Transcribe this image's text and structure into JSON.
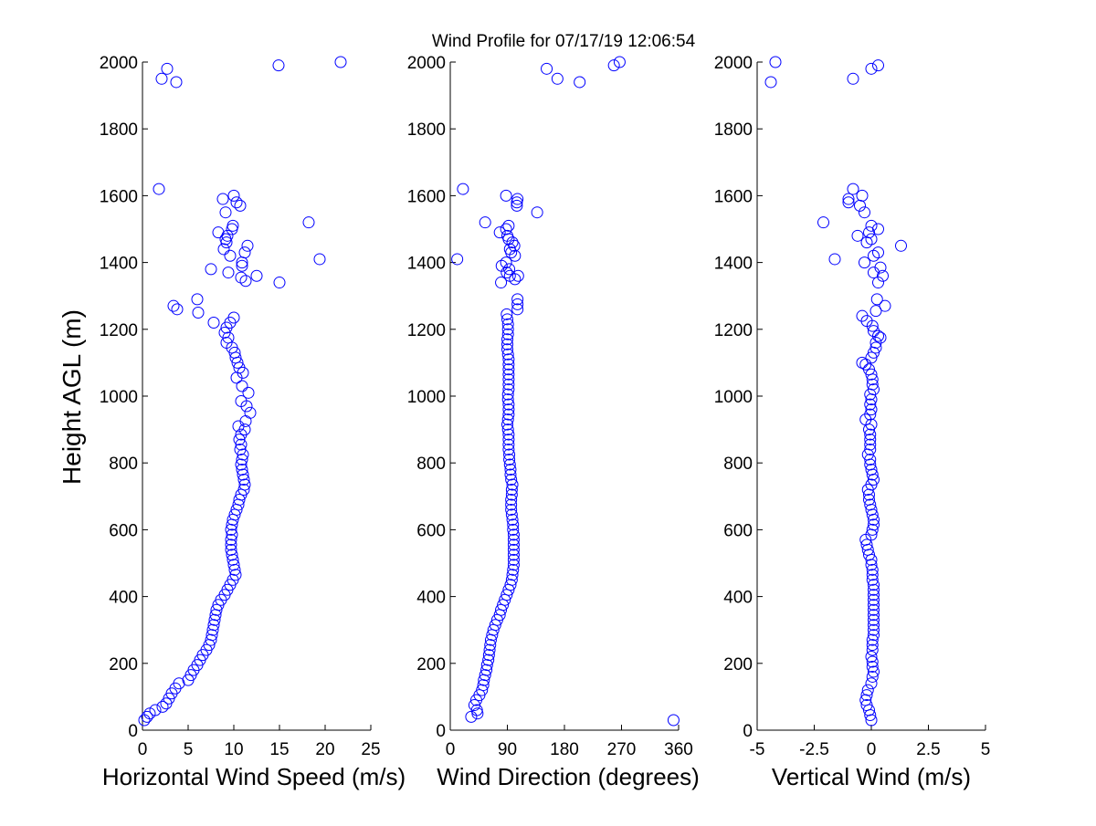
{
  "figure": {
    "title": "Wind Profile for  07/17/19 12:06:54",
    "marker_color": "#0000ff",
    "axis_color": "#000000",
    "background": "#ffffff"
  },
  "chart_data": [
    {
      "type": "scatter",
      "xlabel": "Horizontal Wind Speed (m/s)",
      "ylabel": "Height AGL (m)",
      "xlim": [
        0,
        25
      ],
      "ylim": [
        0,
        2000
      ],
      "xticks": [
        "0",
        "5",
        "10",
        "15",
        "20",
        "25"
      ],
      "yticks": [
        "0",
        "200",
        "400",
        "600",
        "800",
        "1000",
        "1200",
        "1400",
        "1600",
        "1800",
        "2000"
      ],
      "grid": false,
      "points": [
        [
          0.2,
          30
        ],
        [
          0.5,
          40
        ],
        [
          0.8,
          50
        ],
        [
          1.4,
          60
        ],
        [
          2.2,
          70
        ],
        [
          2.6,
          80
        ],
        [
          2.9,
          95
        ],
        [
          3.2,
          110
        ],
        [
          3.6,
          125
        ],
        [
          4.0,
          140
        ],
        [
          5.0,
          150
        ],
        [
          5.3,
          165
        ],
        [
          5.6,
          180
        ],
        [
          6.0,
          195
        ],
        [
          6.3,
          210
        ],
        [
          6.6,
          225
        ],
        [
          7.0,
          240
        ],
        [
          7.3,
          255
        ],
        [
          7.5,
          270
        ],
        [
          7.6,
          285
        ],
        [
          7.7,
          300
        ],
        [
          7.8,
          315
        ],
        [
          7.9,
          330
        ],
        [
          8.0,
          345
        ],
        [
          8.1,
          360
        ],
        [
          8.3,
          375
        ],
        [
          8.6,
          390
        ],
        [
          9.0,
          405
        ],
        [
          9.3,
          420
        ],
        [
          9.6,
          435
        ],
        [
          9.9,
          450
        ],
        [
          10.2,
          465
        ],
        [
          10.1,
          480
        ],
        [
          10.0,
          495
        ],
        [
          9.9,
          510
        ],
        [
          9.8,
          525
        ],
        [
          9.7,
          540
        ],
        [
          9.7,
          555
        ],
        [
          9.7,
          570
        ],
        [
          9.8,
          585
        ],
        [
          9.7,
          600
        ],
        [
          9.8,
          615
        ],
        [
          9.9,
          630
        ],
        [
          10.1,
          645
        ],
        [
          10.3,
          660
        ],
        [
          10.5,
          675
        ],
        [
          10.6,
          690
        ],
        [
          10.8,
          705
        ],
        [
          11.1,
          720
        ],
        [
          11.2,
          735
        ],
        [
          11.1,
          750
        ],
        [
          11.0,
          765
        ],
        [
          10.9,
          780
        ],
        [
          10.8,
          795
        ],
        [
          10.9,
          810
        ],
        [
          11.0,
          825
        ],
        [
          10.7,
          840
        ],
        [
          10.8,
          855
        ],
        [
          10.6,
          870
        ],
        [
          10.8,
          885
        ],
        [
          11.2,
          900
        ],
        [
          10.5,
          910
        ],
        [
          11.3,
          925
        ],
        [
          11.8,
          950
        ],
        [
          11.4,
          970
        ],
        [
          10.8,
          985
        ],
        [
          11.6,
          1010
        ],
        [
          10.9,
          1030
        ],
        [
          10.3,
          1055
        ],
        [
          11.0,
          1070
        ],
        [
          10.6,
          1085
        ],
        [
          10.4,
          1100
        ],
        [
          10.2,
          1115
        ],
        [
          10.1,
          1130
        ],
        [
          9.8,
          1145
        ],
        [
          9.2,
          1160
        ],
        [
          9.4,
          1175
        ],
        [
          9.0,
          1190
        ],
        [
          9.2,
          1205
        ],
        [
          9.6,
          1220
        ],
        [
          10.0,
          1235
        ],
        [
          7.8,
          1220
        ],
        [
          6.1,
          1250
        ],
        [
          3.8,
          1260
        ],
        [
          3.4,
          1270
        ],
        [
          6.0,
          1290
        ],
        [
          15.0,
          1340
        ],
        [
          11.3,
          1345
        ],
        [
          10.8,
          1355
        ],
        [
          12.5,
          1360
        ],
        [
          9.4,
          1370
        ],
        [
          7.5,
          1380
        ],
        [
          10.9,
          1390
        ],
        [
          10.9,
          1400
        ],
        [
          19.4,
          1410
        ],
        [
          9.6,
          1420
        ],
        [
          11.2,
          1430
        ],
        [
          8.9,
          1440
        ],
        [
          11.5,
          1450
        ],
        [
          9.2,
          1460
        ],
        [
          9.1,
          1470
        ],
        [
          9.3,
          1480
        ],
        [
          8.3,
          1490
        ],
        [
          9.8,
          1500
        ],
        [
          9.9,
          1510
        ],
        [
          18.2,
          1520
        ],
        [
          9.1,
          1550
        ],
        [
          10.7,
          1570
        ],
        [
          10.3,
          1580
        ],
        [
          8.8,
          1590
        ],
        [
          10.0,
          1600
        ],
        [
          1.8,
          1620
        ],
        [
          3.7,
          1940
        ],
        [
          2.1,
          1950
        ],
        [
          2.7,
          1980
        ],
        [
          14.9,
          1990
        ],
        [
          21.7,
          2000
        ]
      ]
    },
    {
      "type": "scatter",
      "xlabel": "Wind Direction (degrees)",
      "ylabel": "",
      "xlim": [
        0,
        360
      ],
      "ylim": [
        0,
        2000
      ],
      "xticks": [
        "0",
        "90",
        "180",
        "270",
        "360"
      ],
      "yticks": [
        "0",
        "200",
        "400",
        "600",
        "800",
        "1000",
        "1200",
        "1400",
        "1600",
        "1800",
        "2000"
      ],
      "grid": false,
      "points": [
        [
          352,
          30
        ],
        [
          33,
          40
        ],
        [
          43,
          50
        ],
        [
          42,
          60
        ],
        [
          38,
          75
        ],
        [
          41,
          90
        ],
        [
          46,
          105
        ],
        [
          50,
          120
        ],
        [
          52,
          135
        ],
        [
          53,
          150
        ],
        [
          55,
          165
        ],
        [
          57,
          180
        ],
        [
          58,
          195
        ],
        [
          60,
          210
        ],
        [
          61,
          225
        ],
        [
          62,
          240
        ],
        [
          63,
          255
        ],
        [
          64,
          270
        ],
        [
          66,
          285
        ],
        [
          68,
          300
        ],
        [
          71,
          315
        ],
        [
          74,
          330
        ],
        [
          78,
          345
        ],
        [
          80,
          360
        ],
        [
          83,
          375
        ],
        [
          86,
          390
        ],
        [
          89,
          405
        ],
        [
          92,
          420
        ],
        [
          95,
          435
        ],
        [
          97,
          450
        ],
        [
          98,
          465
        ],
        [
          99,
          480
        ],
        [
          100,
          495
        ],
        [
          100,
          510
        ],
        [
          100,
          525
        ],
        [
          100,
          540
        ],
        [
          100,
          555
        ],
        [
          100,
          570
        ],
        [
          100,
          585
        ],
        [
          99,
          600
        ],
        [
          99,
          615
        ],
        [
          98,
          630
        ],
        [
          97,
          645
        ],
        [
          96,
          660
        ],
        [
          96,
          675
        ],
        [
          96,
          690
        ],
        [
          97,
          705
        ],
        [
          97,
          720
        ],
        [
          98,
          735
        ],
        [
          96,
          750
        ],
        [
          95,
          765
        ],
        [
          95,
          780
        ],
        [
          94,
          795
        ],
        [
          93,
          810
        ],
        [
          93,
          825
        ],
        [
          92,
          840
        ],
        [
          92,
          855
        ],
        [
          92,
          870
        ],
        [
          92,
          885
        ],
        [
          91,
          900
        ],
        [
          90,
          915
        ],
        [
          91,
          930
        ],
        [
          92,
          945
        ],
        [
          92,
          960
        ],
        [
          92,
          975
        ],
        [
          91,
          990
        ],
        [
          91,
          1005
        ],
        [
          92,
          1020
        ],
        [
          92,
          1035
        ],
        [
          92,
          1050
        ],
        [
          92,
          1065
        ],
        [
          92,
          1080
        ],
        [
          92,
          1095
        ],
        [
          92,
          1110
        ],
        [
          91,
          1125
        ],
        [
          90,
          1140
        ],
        [
          90,
          1155
        ],
        [
          90,
          1170
        ],
        [
          91,
          1185
        ],
        [
          91,
          1200
        ],
        [
          91,
          1215
        ],
        [
          90,
          1230
        ],
        [
          89,
          1245
        ],
        [
          106,
          1260
        ],
        [
          106,
          1275
        ],
        [
          106,
          1290
        ],
        [
          80,
          1340
        ],
        [
          102,
          1350
        ],
        [
          94,
          1360
        ],
        [
          107,
          1360
        ],
        [
          89,
          1370
        ],
        [
          93,
          1380
        ],
        [
          81,
          1390
        ],
        [
          88,
          1400
        ],
        [
          11,
          1410
        ],
        [
          102,
          1420
        ],
        [
          96,
          1430
        ],
        [
          94,
          1440
        ],
        [
          101,
          1450
        ],
        [
          98,
          1460
        ],
        [
          92,
          1470
        ],
        [
          90,
          1480
        ],
        [
          78,
          1490
        ],
        [
          88,
          1500
        ],
        [
          92,
          1510
        ],
        [
          55,
          1520
        ],
        [
          137,
          1550
        ],
        [
          105,
          1570
        ],
        [
          105,
          1580
        ],
        [
          106,
          1590
        ],
        [
          88,
          1600
        ],
        [
          20,
          1620
        ],
        [
          204,
          1940
        ],
        [
          169,
          1950
        ],
        [
          152,
          1980
        ],
        [
          258,
          1990
        ],
        [
          267,
          2000
        ]
      ]
    },
    {
      "type": "scatter",
      "xlabel": "Vertical Wind (m/s)",
      "ylabel": "",
      "xlim": [
        -5,
        5
      ],
      "ylim": [
        0,
        2000
      ],
      "xticks": [
        "-5",
        "-2.5",
        "0",
        "2.5",
        "5"
      ],
      "yticks": [
        "0",
        "200",
        "400",
        "600",
        "800",
        "1000",
        "1200",
        "1400",
        "1600",
        "1800",
        "2000"
      ],
      "grid": false,
      "points": [
        [
          0.0,
          30
        ],
        [
          -0.05,
          45
        ],
        [
          -0.1,
          60
        ],
        [
          -0.2,
          75
        ],
        [
          -0.25,
          90
        ],
        [
          -0.2,
          105
        ],
        [
          -0.15,
          120
        ],
        [
          0.0,
          140
        ],
        [
          0.05,
          160
        ],
        [
          0.1,
          175
        ],
        [
          0.05,
          190
        ],
        [
          0.05,
          205
        ],
        [
          0.0,
          220
        ],
        [
          0.05,
          240
        ],
        [
          0.05,
          255
        ],
        [
          0.05,
          270
        ],
        [
          0.1,
          285
        ],
        [
          0.1,
          300
        ],
        [
          0.1,
          315
        ],
        [
          0.1,
          330
        ],
        [
          0.1,
          345
        ],
        [
          0.1,
          360
        ],
        [
          0.1,
          375
        ],
        [
          0.1,
          390
        ],
        [
          0.1,
          405
        ],
        [
          0.1,
          420
        ],
        [
          0.1,
          435
        ],
        [
          0.05,
          450
        ],
        [
          0.05,
          465
        ],
        [
          0.05,
          480
        ],
        [
          0.0,
          495
        ],
        [
          0.0,
          510
        ],
        [
          -0.1,
          525
        ],
        [
          -0.15,
          540
        ],
        [
          -0.2,
          555
        ],
        [
          -0.25,
          570
        ],
        [
          0.0,
          585
        ],
        [
          0.05,
          600
        ],
        [
          0.1,
          615
        ],
        [
          0.1,
          630
        ],
        [
          0.05,
          645
        ],
        [
          0.0,
          660
        ],
        [
          -0.05,
          675
        ],
        [
          -0.1,
          690
        ],
        [
          -0.1,
          705
        ],
        [
          -0.15,
          720
        ],
        [
          0.0,
          735
        ],
        [
          0.1,
          750
        ],
        [
          0.05,
          765
        ],
        [
          0.0,
          780
        ],
        [
          -0.05,
          795
        ],
        [
          -0.05,
          810
        ],
        [
          -0.15,
          825
        ],
        [
          -0.05,
          840
        ],
        [
          -0.05,
          855
        ],
        [
          -0.05,
          870
        ],
        [
          -0.05,
          885
        ],
        [
          -0.1,
          900
        ],
        [
          0.0,
          915
        ],
        [
          -0.25,
          930
        ],
        [
          -0.05,
          945
        ],
        [
          0.0,
          960
        ],
        [
          -0.05,
          975
        ],
        [
          0.0,
          990
        ],
        [
          -0.05,
          1005
        ],
        [
          0.1,
          1020
        ],
        [
          0.05,
          1035
        ],
        [
          0.05,
          1050
        ],
        [
          0.0,
          1065
        ],
        [
          -0.1,
          1080
        ],
        [
          -0.25,
          1095
        ],
        [
          -0.4,
          1100
        ],
        [
          0.0,
          1115
        ],
        [
          0.1,
          1130
        ],
        [
          0.2,
          1145
        ],
        [
          0.2,
          1160
        ],
        [
          0.4,
          1175
        ],
        [
          0.3,
          1180
        ],
        [
          0.1,
          1195
        ],
        [
          0.05,
          1210
        ],
        [
          -0.2,
          1225
        ],
        [
          -0.4,
          1240
        ],
        [
          0.2,
          1255
        ],
        [
          0.6,
          1270
        ],
        [
          0.25,
          1290
        ],
        [
          0.3,
          1340
        ],
        [
          0.5,
          1360
        ],
        [
          0.1,
          1370
        ],
        [
          0.4,
          1385
        ],
        [
          -0.3,
          1400
        ],
        [
          -1.6,
          1410
        ],
        [
          0.1,
          1420
        ],
        [
          0.3,
          1430
        ],
        [
          1.3,
          1450
        ],
        [
          -0.2,
          1460
        ],
        [
          0.0,
          1470
        ],
        [
          -0.6,
          1480
        ],
        [
          -0.1,
          1490
        ],
        [
          0.3,
          1500
        ],
        [
          0.0,
          1510
        ],
        [
          -2.1,
          1520
        ],
        [
          -0.3,
          1550
        ],
        [
          -0.5,
          1570
        ],
        [
          -1.0,
          1580
        ],
        [
          -1.0,
          1590
        ],
        [
          -0.4,
          1600
        ],
        [
          -0.8,
          1620
        ],
        [
          -4.4,
          1940
        ],
        [
          -0.8,
          1950
        ],
        [
          0.0,
          1980
        ],
        [
          0.3,
          1990
        ],
        [
          -4.2,
          2000
        ]
      ]
    }
  ]
}
